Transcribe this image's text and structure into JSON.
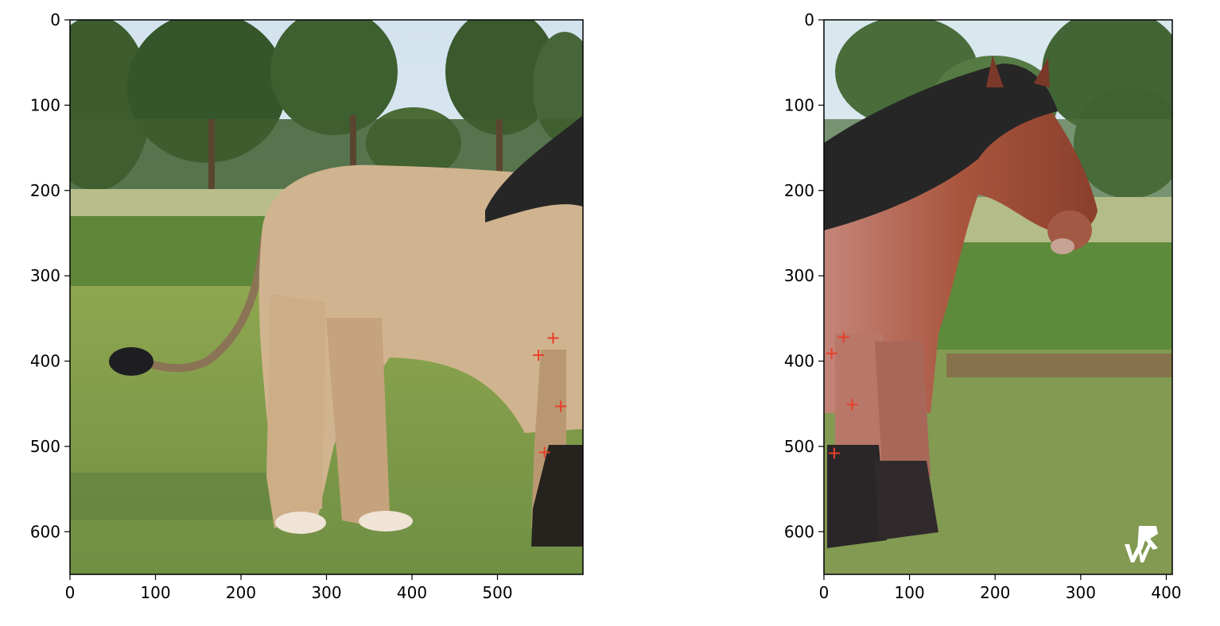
{
  "chart_data": [
    {
      "type": "scatter",
      "panel": "left",
      "image_extent": {
        "x": [
          0,
          600
        ],
        "y": [
          650,
          0
        ]
      },
      "xlim": [
        0,
        600
      ],
      "ylim": [
        650,
        0
      ],
      "x_ticks": [
        0,
        100,
        200,
        300,
        400,
        500
      ],
      "y_ticks": [
        0,
        100,
        200,
        300,
        400,
        500,
        600
      ],
      "x": [
        565,
        548,
        574,
        555
      ],
      "y": [
        373,
        393,
        453,
        507
      ],
      "marker": "+",
      "marker_color": "#e8402a",
      "image_description": "horse with lion hindquarters in a grassy field with trees"
    },
    {
      "type": "scatter",
      "panel": "right",
      "image_extent": {
        "x": [
          0,
          407
        ],
        "y": [
          650,
          0
        ]
      },
      "xlim": [
        0,
        407
      ],
      "ylim": [
        650,
        0
      ],
      "x_ticks": [
        0,
        100,
        200,
        300,
        400
      ],
      "y_ticks": [
        0,
        100,
        200,
        300,
        400,
        500,
        600
      ],
      "x": [
        23,
        9,
        33,
        12
      ],
      "y": [
        372,
        391,
        451,
        508
      ],
      "marker": "+",
      "marker_color": "#e8402a",
      "image_description": "brown draft horse standing in a grassy field"
    }
  ],
  "colors": {
    "sky": "#d7e6ee",
    "tree_dark": "#36562c",
    "grass": "#7f9a4c",
    "lion_body": "#d0b48f",
    "horse_brown": "#9a4a34",
    "mane": "#262626"
  }
}
